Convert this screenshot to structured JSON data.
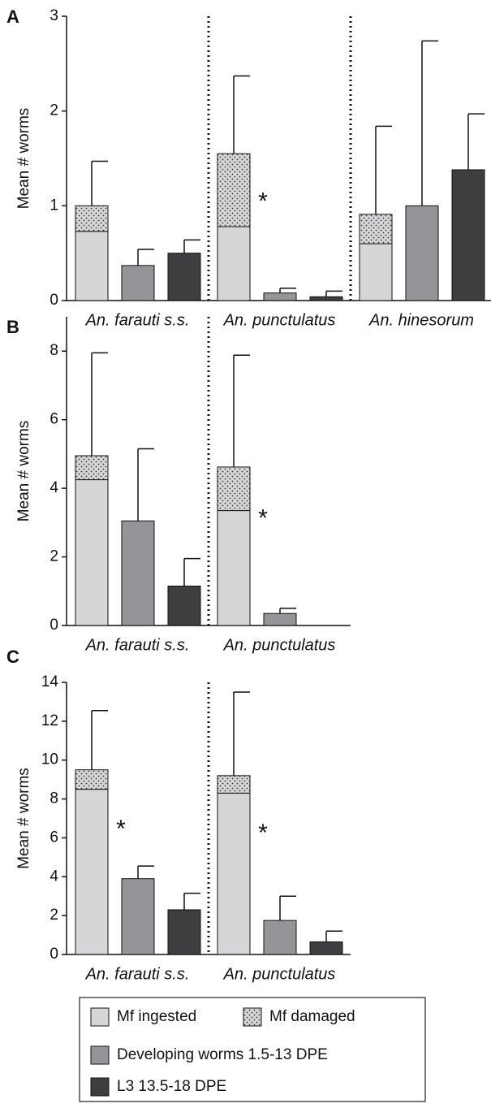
{
  "chart_data": [
    {
      "type": "bar",
      "panel": "A",
      "ylabel": "Mean # worms",
      "categories": [
        "An. farauti s.s.",
        "An. punctulatus",
        "An. hinesorum"
      ],
      "ylim": [
        0,
        3
      ],
      "yticks": [
        0,
        1,
        2,
        3
      ],
      "series": [
        {
          "name": "Mf ingested",
          "color": "#d4d6d8",
          "values": [
            0.73,
            0.78,
            0.6
          ]
        },
        {
          "name": "Mf damaged",
          "color": "#d4d6d8",
          "pattern": "dots",
          "values": [
            0.27,
            0.77,
            0.31
          ],
          "errors": [
            0.47,
            0.82,
            0.93
          ]
        },
        {
          "name": "Developing worms 1.5-13 DPE",
          "color": "#939598",
          "values": [
            0.37,
            0.08,
            1.0
          ],
          "errors": [
            0.17,
            0.05,
            1.74
          ]
        },
        {
          "name": "L3 13.5-18 DPE",
          "color": "#3d3e40",
          "values": [
            0.5,
            0.04,
            1.38
          ],
          "errors": [
            0.14,
            0.06,
            0.59
          ]
        }
      ],
      "annotations": [
        {
          "text": "*",
          "category": "An. punctulatus"
        }
      ]
    },
    {
      "type": "bar",
      "panel": "B",
      "ylabel": "Mean # worms",
      "categories": [
        "An. farauti s.s.",
        "An. punctulatus"
      ],
      "ylim": [
        0,
        9
      ],
      "yticks": [
        0,
        2,
        4,
        6,
        8
      ],
      "series": [
        {
          "color": "#d4d6d8",
          "values": [
            4.25,
            3.35
          ]
        },
        {
          "color": "#d4d6d8",
          "pattern": "dots",
          "values": [
            0.7,
            1.27
          ],
          "errors": [
            3.0,
            3.26
          ]
        },
        {
          "color": "#939598",
          "values": [
            3.05,
            0.35
          ],
          "errors": [
            2.1,
            0.15
          ]
        },
        {
          "color": "#3d3e40",
          "values": [
            1.15,
            null
          ],
          "errors": [
            0.8,
            null
          ]
        }
      ],
      "annotations": [
        {
          "text": "*",
          "category": "An. punctulatus"
        }
      ]
    },
    {
      "type": "bar",
      "panel": "C",
      "ylabel": "Mean # worms",
      "categories": [
        "An. farauti s.s.",
        "An. punctulatus"
      ],
      "ylim": [
        0,
        14
      ],
      "yticks": [
        0,
        2,
        4,
        6,
        8,
        10,
        12,
        14
      ],
      "series": [
        {
          "color": "#d4d6d8",
          "values": [
            8.5,
            8.3
          ]
        },
        {
          "color": "#d4d6d8",
          "pattern": "dots",
          "values": [
            1.0,
            0.9
          ],
          "errors": [
            3.05,
            4.3
          ]
        },
        {
          "color": "#939598",
          "values": [
            3.9,
            1.75
          ],
          "errors": [
            0.65,
            1.25
          ]
        },
        {
          "color": "#3d3e40",
          "values": [
            2.3,
            0.65
          ],
          "errors": [
            0.85,
            0.55
          ]
        }
      ],
      "annotations": [
        {
          "text": "*",
          "category": "An. farauti s.s."
        },
        {
          "text": "*",
          "category": "An. punctulatus"
        }
      ]
    }
  ]
}
